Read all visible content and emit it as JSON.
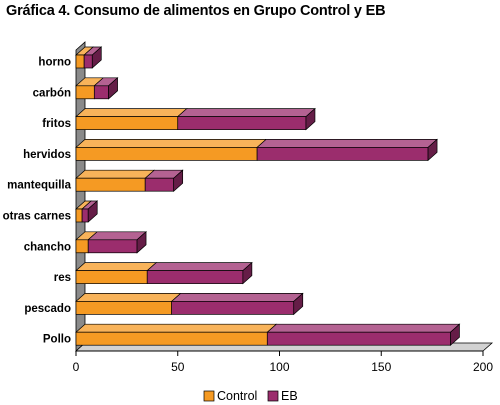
{
  "chart_data": {
    "type": "bar",
    "orientation": "horizontal",
    "stacked": true,
    "three_d": true,
    "title": "Gráfica 4. Consumo de alimentos en Grupo Control y EB",
    "categories": [
      "horno",
      "carbón",
      "fritos",
      "hervidos",
      "mantequilla",
      "otras carnes",
      "chancho",
      "res",
      "pescado",
      "Pollo"
    ],
    "series": [
      {
        "name": "Control",
        "color": "#f59a23",
        "values": [
          4,
          9,
          50,
          89,
          34,
          3,
          6,
          35,
          47,
          94
        ]
      },
      {
        "name": "EB",
        "color": "#9b2d6d",
        "values": [
          4,
          7,
          63,
          84,
          14,
          3,
          24,
          47,
          60,
          90
        ]
      }
    ],
    "xlim": [
      0,
      200
    ],
    "xticks": [
      "0",
      "50",
      "100",
      "150",
      "200"
    ],
    "xlabel": "",
    "ylabel": "",
    "grid": false,
    "legend_position": "bottom"
  }
}
